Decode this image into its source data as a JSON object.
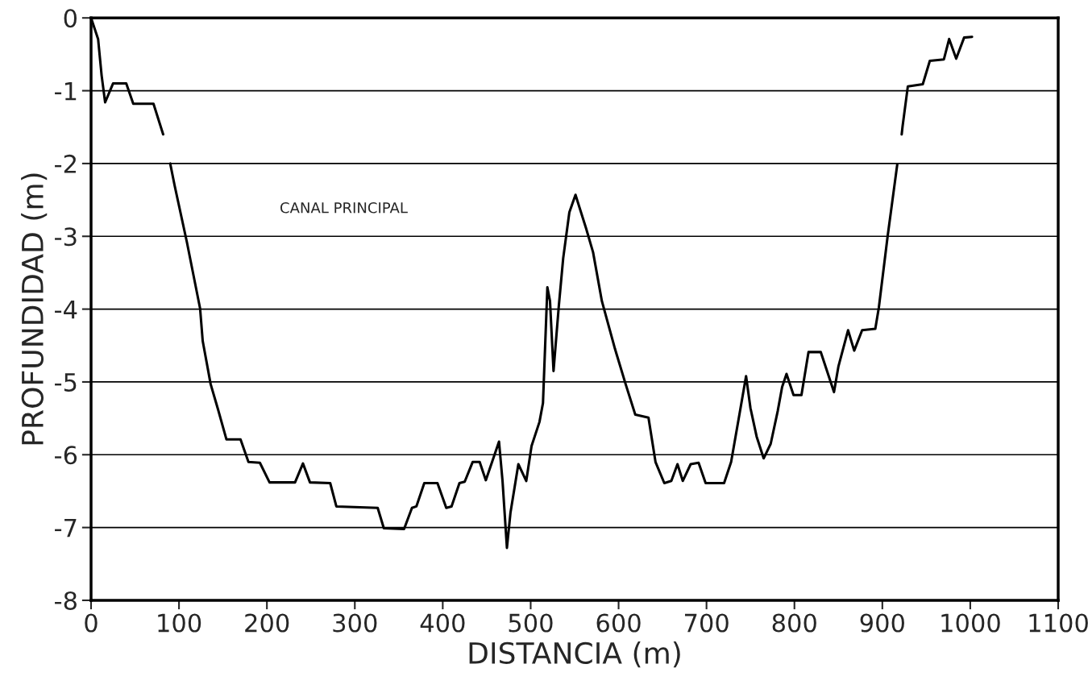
{
  "chart_data": {
    "type": "line",
    "xlabel": "DISTANCIA (m)",
    "ylabel": "PROFUNDIDAD (m)",
    "x": [
      0,
      8,
      12,
      16,
      25,
      40,
      48,
      71,
      82,
      86,
      90,
      95,
      109,
      124,
      127,
      136,
      144,
      154,
      170,
      179,
      192,
      203,
      232,
      241,
      249,
      272,
      279,
      326,
      333,
      356,
      365,
      370,
      379,
      394,
      404,
      410,
      419,
      425,
      434,
      442,
      449,
      464,
      468,
      473,
      477,
      486,
      495,
      501,
      510,
      514,
      519,
      522,
      526,
      532,
      537,
      544,
      551,
      563,
      571,
      581,
      596,
      608,
      619,
      634,
      642,
      652,
      660,
      667,
      673,
      682,
      691,
      699,
      720,
      728,
      740,
      745,
      750,
      757,
      765,
      773,
      781,
      786,
      791,
      799,
      808,
      816,
      830,
      845,
      850,
      861,
      868,
      877,
      892,
      896,
      906,
      917,
      920,
      922,
      923,
      929,
      946,
      954,
      970,
      976,
      984,
      993,
      1002
    ],
    "series": [
      {
        "color": "#000000",
        "values": [
          0,
          -0.29,
          -0.79,
          -1.16,
          -0.9,
          -0.9,
          -1.18,
          -1.18,
          -1.6,
          null,
          -2.0,
          -2.3,
          -3.08,
          -3.99,
          -4.44,
          -5.03,
          -5.36,
          -5.79,
          -5.79,
          -6.1,
          -6.11,
          -6.38,
          -6.38,
          -6.12,
          -6.38,
          -6.39,
          -6.71,
          -6.73,
          -7.01,
          -7.02,
          -6.73,
          -6.71,
          -6.39,
          -6.39,
          -6.73,
          -6.71,
          -6.39,
          -6.37,
          -6.1,
          -6.1,
          -6.35,
          -5.82,
          -6.36,
          -7.28,
          -6.8,
          -6.13,
          -6.36,
          -5.88,
          -5.55,
          -5.29,
          -3.7,
          -3.89,
          -4.85,
          -3.96,
          -3.3,
          -2.67,
          -2.43,
          -2.89,
          -3.22,
          -3.89,
          -4.55,
          -5.03,
          -5.45,
          -5.49,
          -6.1,
          -6.39,
          -6.36,
          -6.13,
          -6.36,
          -6.13,
          -6.11,
          -6.39,
          -6.39,
          -6.1,
          -5.27,
          -4.92,
          -5.36,
          -5.75,
          -6.05,
          -5.85,
          -5.4,
          -5.07,
          -4.89,
          -5.18,
          -5.18,
          -4.59,
          -4.59,
          -5.14,
          -4.79,
          -4.29,
          -4.57,
          -4.29,
          -4.27,
          -3.98,
          -3.0,
          -2.01,
          null,
          -1.6,
          -1.49,
          -0.94,
          -0.91,
          -0.59,
          -0.57,
          -0.29,
          -0.56,
          -0.27,
          -0.26
        ]
      }
    ],
    "xlim": [
      0,
      1100
    ],
    "xticks": [
      0,
      100,
      200,
      300,
      400,
      500,
      600,
      700,
      800,
      900,
      1000,
      1100
    ],
    "ylim": [
      -8,
      0
    ],
    "yticks": [
      -8,
      -7,
      -6,
      -5,
      -4,
      -3,
      -2,
      -1,
      0
    ],
    "grid": "y",
    "legend": false,
    "marker": "none",
    "line_style": "solid",
    "annotations": [
      "CANAL PRINCIPAL"
    ]
  }
}
